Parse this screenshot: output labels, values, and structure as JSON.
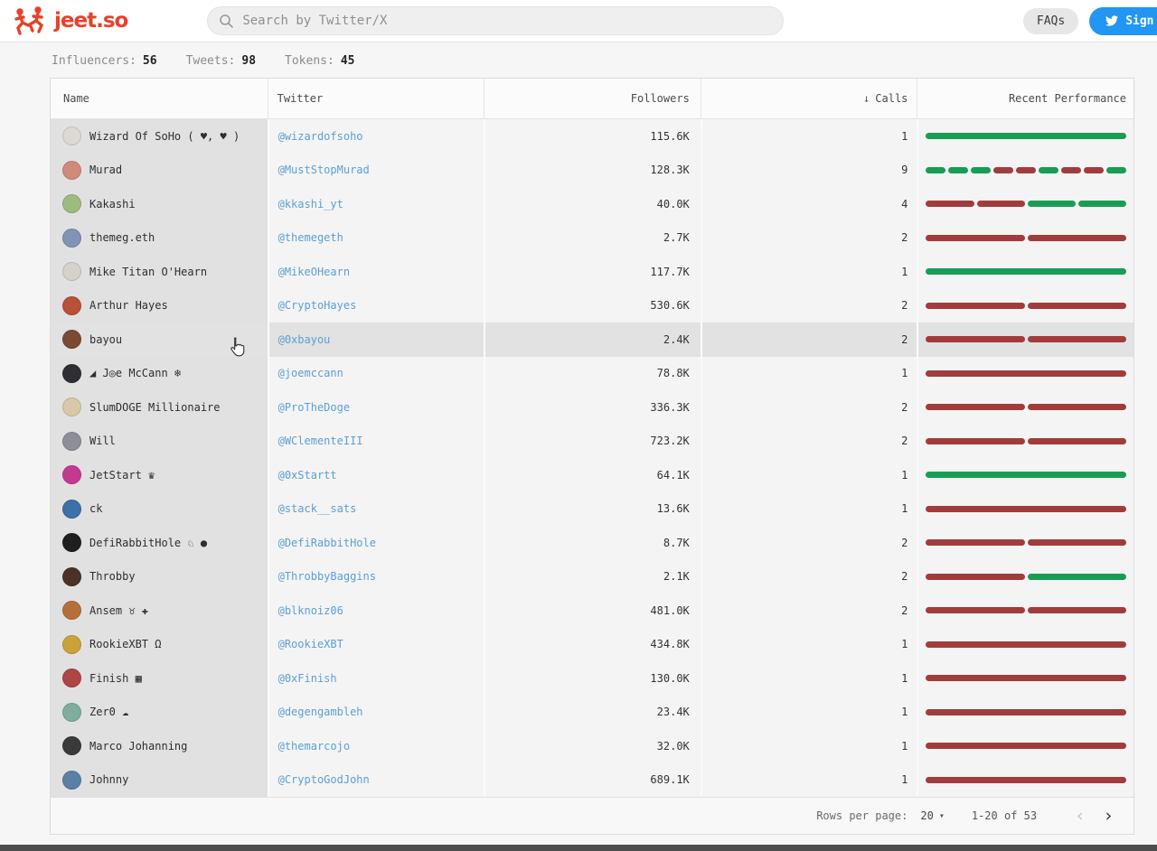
{
  "header": {
    "logo_text": "jeet.so",
    "search_placeholder": "Search by Twitter/X",
    "faqs_label": "FAQs",
    "signin_label": "Sign In"
  },
  "stats": [
    {
      "label": "Influencers:",
      "value": "56"
    },
    {
      "label": "Tweets:",
      "value": "98"
    },
    {
      "label": "Tokens:",
      "value": "45"
    }
  ],
  "table": {
    "columns": [
      {
        "label": "Name"
      },
      {
        "label": "Twitter"
      },
      {
        "label": "Followers"
      },
      {
        "label": "Calls",
        "sort_icon": "↓"
      },
      {
        "label": "Recent Performance"
      }
    ],
    "hover_row_index": 6,
    "rows": [
      {
        "name": "Wizard Of SoHo ( ♥, ♥ )",
        "handle": "@wizardofsoho",
        "followers": "115.6K",
        "calls": "1",
        "perf": [
          "g"
        ],
        "avatar_color": "#dcd8d2"
      },
      {
        "name": "Murad",
        "handle": "@MustStopMurad",
        "followers": "128.3K",
        "calls": "9",
        "perf": [
          "g",
          "g",
          "g",
          "r",
          "r",
          "g",
          "r",
          "r",
          "g"
        ],
        "avatar_color": "#cf8a7a"
      },
      {
        "name": "Kakashi",
        "handle": "@kkashi_yt",
        "followers": "40.0K",
        "calls": "4",
        "perf": [
          "r",
          "r",
          "g",
          "g"
        ],
        "avatar_color": "#9dbb7e"
      },
      {
        "name": "themeg.eth",
        "handle": "@themegeth",
        "followers": "2.7K",
        "calls": "2",
        "perf": [
          "r",
          "r"
        ],
        "avatar_color": "#8094b8"
      },
      {
        "name": "Mike Titan O'Hearn",
        "handle": "@MikeOHearn",
        "followers": "117.7K",
        "calls": "1",
        "perf": [
          "g"
        ],
        "avatar_color": "#d5d1cb"
      },
      {
        "name": "Arthur Hayes",
        "handle": "@CryptoHayes",
        "followers": "530.6K",
        "calls": "2",
        "perf": [
          "r",
          "r"
        ],
        "avatar_color": "#b8503a"
      },
      {
        "name": "bayou",
        "handle": "@0xbayou",
        "followers": "2.4K",
        "calls": "2",
        "perf": [
          "r",
          "r"
        ],
        "avatar_color": "#7a4a32"
      },
      {
        "name": "◢ J◎e McCann ❄",
        "handle": "@joemccann",
        "followers": "78.8K",
        "calls": "1",
        "perf": [
          "r"
        ],
        "avatar_color": "#2e2e33"
      },
      {
        "name": "SlumDOGE Millionaire",
        "handle": "@ProTheDoge",
        "followers": "336.3K",
        "calls": "2",
        "perf": [
          "r",
          "r"
        ],
        "avatar_color": "#d8c8a8"
      },
      {
        "name": "Will",
        "handle": "@WClementeIII",
        "followers": "723.2K",
        "calls": "2",
        "perf": [
          "r",
          "r"
        ],
        "avatar_color": "#8e8e99"
      },
      {
        "name": "JetStart ♛",
        "handle": "@0xStartt",
        "followers": "64.1K",
        "calls": "1",
        "perf": [
          "g"
        ],
        "avatar_color": "#c23a8f"
      },
      {
        "name": "ck",
        "handle": "@stack__sats",
        "followers": "13.6K",
        "calls": "1",
        "perf": [
          "r"
        ],
        "avatar_color": "#3d6fa8"
      },
      {
        "name": "DefiRabbitHole ♘ ●",
        "handle": "@DefiRabbitHole",
        "followers": "8.7K",
        "calls": "2",
        "perf": [
          "r",
          "r"
        ],
        "avatar_color": "#1f1f1f"
      },
      {
        "name": "Throbby",
        "handle": "@ThrobbyBaggins",
        "followers": "2.1K",
        "calls": "2",
        "perf": [
          "r",
          "g"
        ],
        "avatar_color": "#4a3226"
      },
      {
        "name": "Ansem ♉ ✚",
        "handle": "@blknoiz06",
        "followers": "481.0K",
        "calls": "2",
        "perf": [
          "r",
          "r"
        ],
        "avatar_color": "#b5703a"
      },
      {
        "name": "RookieXBT Ω",
        "handle": "@RookieXBT",
        "followers": "434.8K",
        "calls": "1",
        "perf": [
          "r"
        ],
        "avatar_color": "#c9a23a"
      },
      {
        "name": "Finish ▦",
        "handle": "@0xFinish",
        "followers": "130.0K",
        "calls": "1",
        "perf": [
          "r"
        ],
        "avatar_color": "#b04545"
      },
      {
        "name": "Zer0 ☁",
        "handle": "@degengambleh",
        "followers": "23.4K",
        "calls": "1",
        "perf": [
          "r"
        ],
        "avatar_color": "#7fae9e"
      },
      {
        "name": "Marco Johanning",
        "handle": "@themarcojo",
        "followers": "32.0K",
        "calls": "1",
        "perf": [
          "r"
        ],
        "avatar_color": "#3a3a3a"
      },
      {
        "name": "Johnny",
        "handle": "@CryptoGodJohn",
        "followers": "689.1K",
        "calls": "1",
        "perf": [
          "r"
        ],
        "avatar_color": "#5b7fa6"
      }
    ]
  },
  "footer": {
    "rows_per_page_label": "Rows per page:",
    "rows_per_page_value": "20",
    "range_label": "1-20 of 53",
    "prev_icon": "‹",
    "next_icon": "›"
  },
  "colors": {
    "green": "#189e54",
    "red": "#a23c3c",
    "link": "#5b9fd4",
    "brand": "#e8402a",
    "signin_blue": "#2196f3"
  }
}
